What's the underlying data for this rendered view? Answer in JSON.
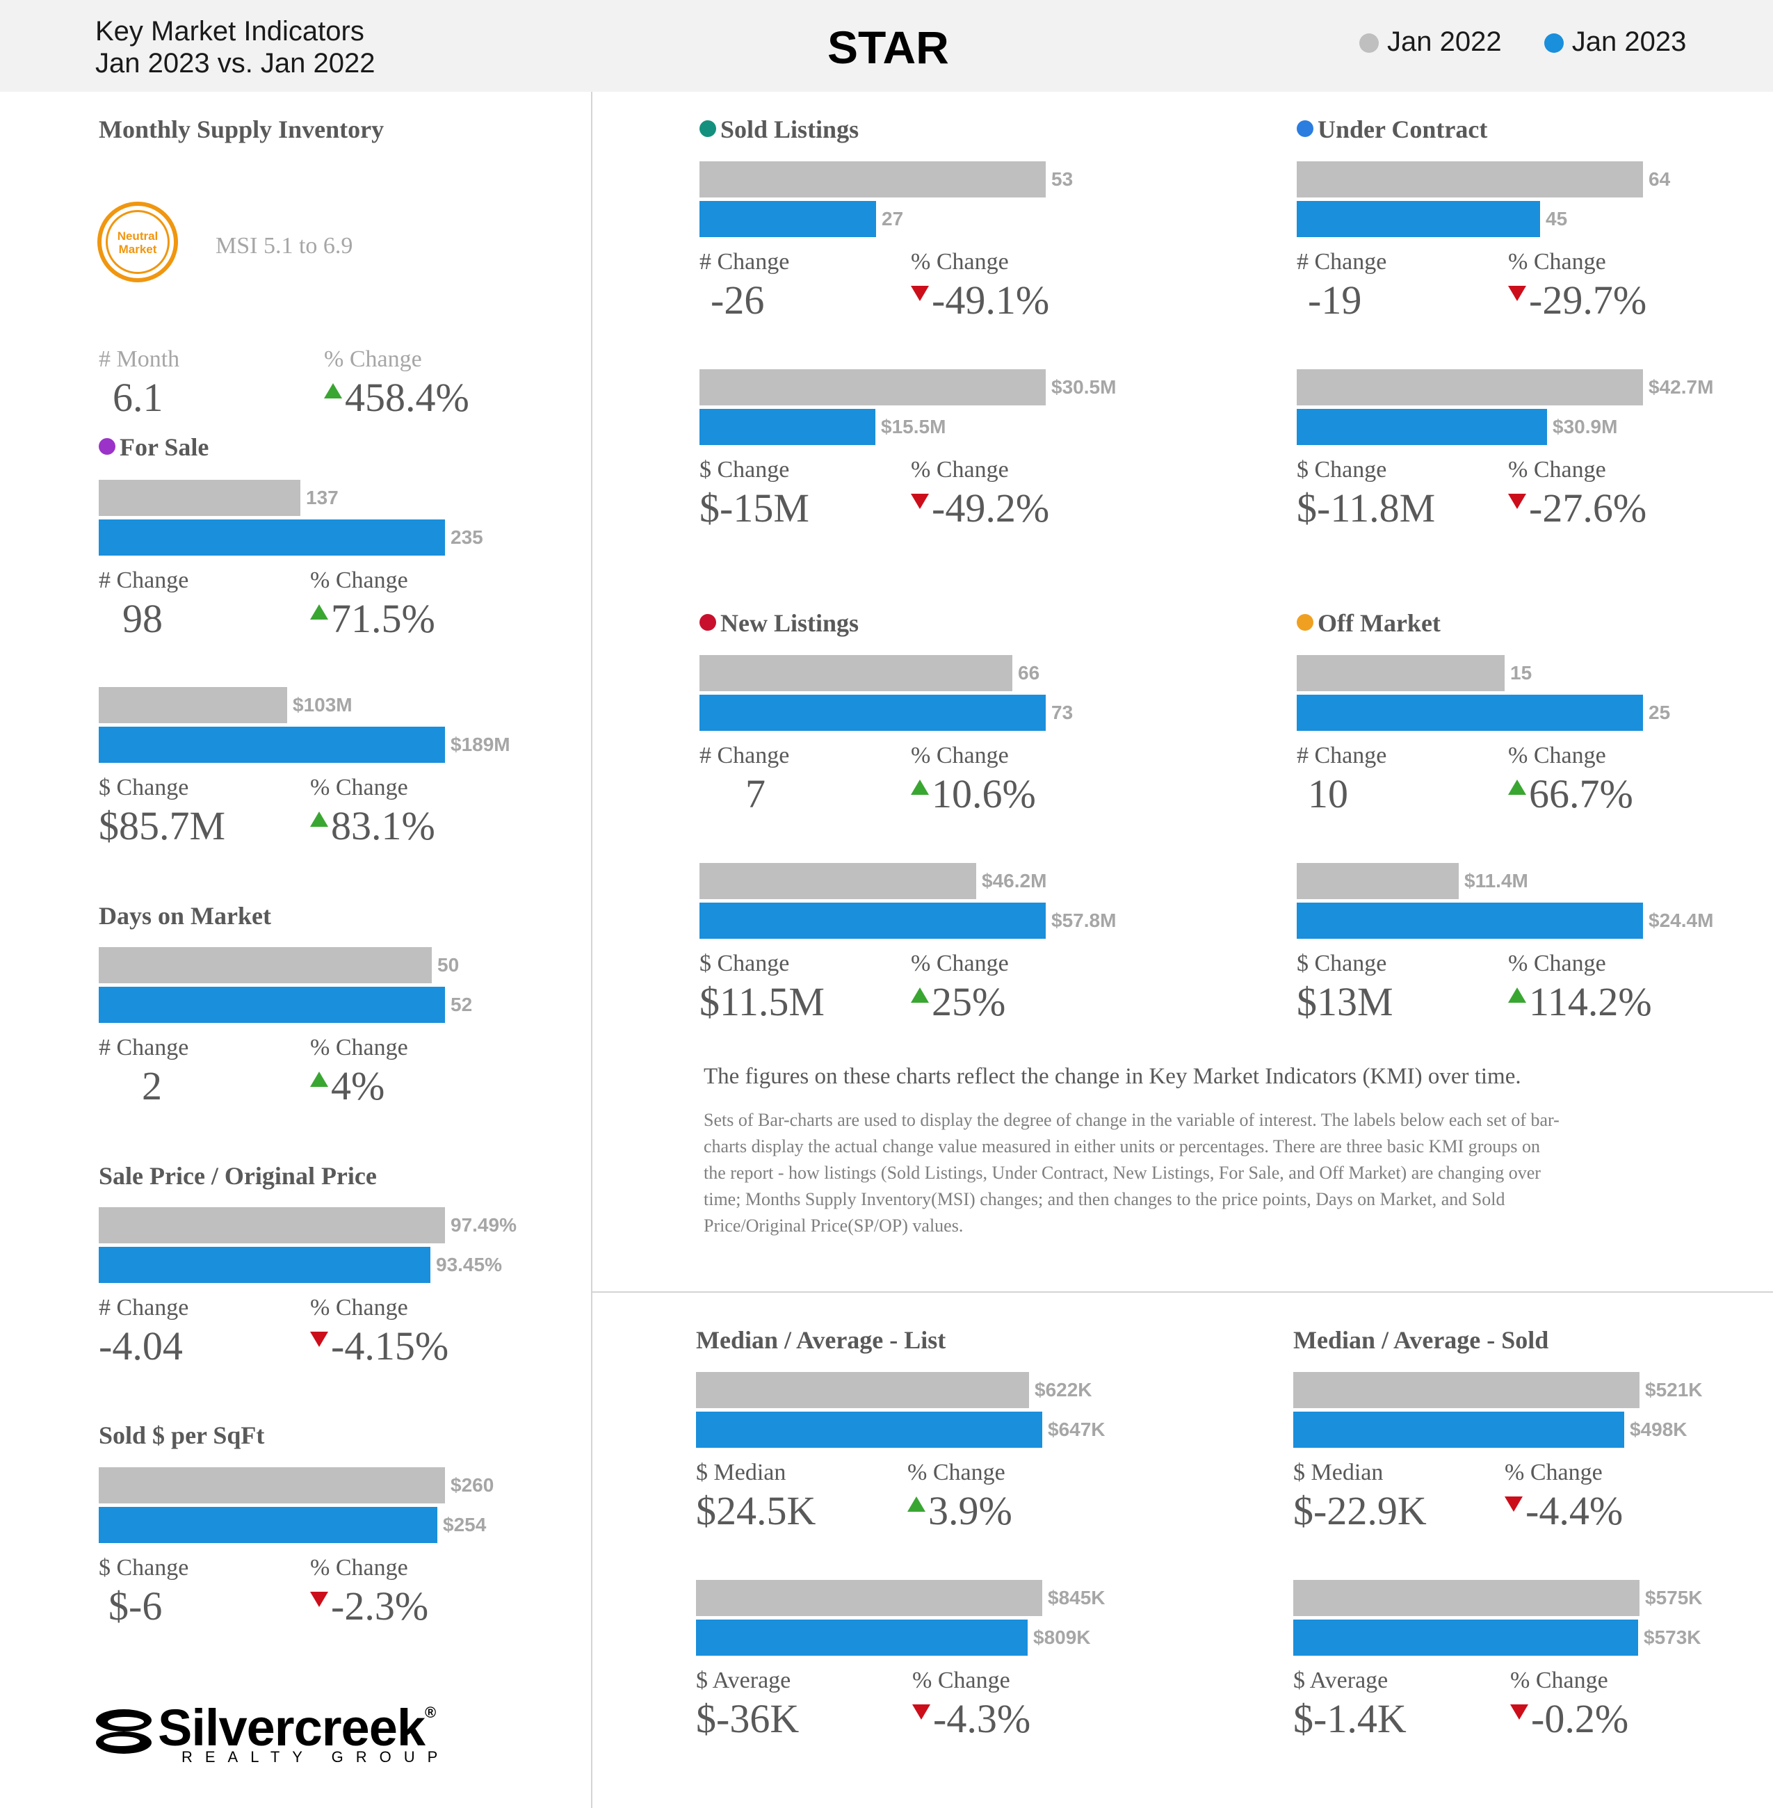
{
  "header": {
    "title_line1": "Key Market Indicators",
    "title_line2": "Jan 2023 vs. Jan 2022",
    "area": "STAR",
    "legend_old": "Jan 2022",
    "legend_new": "Jan 2023"
  },
  "colors": {
    "old_bar": "#bfbfbf",
    "new_bar": "#1a8fdc",
    "up": "#3aa632",
    "down": "#cc0e1b",
    "neutral_badge": "#f0960f"
  },
  "msi": {
    "title": "Monthly Supply Inventory",
    "badge_line1": "Neutral",
    "badge_line2": "Market",
    "range": "MSI 5.1 to 6.9",
    "month_caption": "# Month",
    "month_value": "6.1",
    "pct_caption": "% Change",
    "pct_value": "458.4%",
    "pct_direction": "up"
  },
  "blocks": {
    "for_sale_count": {
      "title": "For Sale",
      "dot_color": "#9b33c9",
      "old_label": "137",
      "new_label": "235",
      "cap1": "# Change",
      "val1": "98",
      "cap2": "% Change",
      "val2": "71.5%"
    },
    "for_sale_volume": {
      "old_label": "$103M",
      "new_label": "$189M",
      "cap1": "$ Change",
      "val1": "$85.7M",
      "cap2": "% Change",
      "val2": "83.1%"
    },
    "dom": {
      "title": "Days on Market",
      "old_label": "50",
      "new_label": "52",
      "cap1": "# Change",
      "val1": "2",
      "cap2": "% Change",
      "val2": "4%"
    },
    "spop": {
      "title": "Sale Price / Original Price",
      "old_label": "97.49%",
      "new_label": "93.45%",
      "cap1": "# Change",
      "val1": "-4.04",
      "cap2": "% Change",
      "val2": "-4.15%"
    },
    "sqft": {
      "title": "Sold $ per SqFt",
      "old_label": "$260",
      "new_label": "$254",
      "cap1": "$ Change",
      "val1": "$-6",
      "cap2": "% Change",
      "val2": "-2.3%"
    },
    "sold_count": {
      "title": "Sold Listings",
      "dot_color": "#14917e",
      "old_label": "53",
      "new_label": "27",
      "cap1": "# Change",
      "val1": "-26",
      "cap2": "% Change",
      "val2": "-49.1%"
    },
    "sold_volume": {
      "old_label": "$30.5M",
      "new_label": "$15.5M",
      "cap1": "$ Change",
      "val1": "$-15M",
      "cap2": "% Change",
      "val2": "-49.2%"
    },
    "uc_count": {
      "title": "Under Contract",
      "dot_color": "#2b7de0",
      "old_label": "64",
      "new_label": "45",
      "cap1": "# Change",
      "val1": "-19",
      "cap2": "% Change",
      "val2": "-29.7%"
    },
    "uc_volume": {
      "old_label": "$42.7M",
      "new_label": "$30.9M",
      "cap1": "$ Change",
      "val1": "$-11.8M",
      "cap2": "% Change",
      "val2": "-27.6%"
    },
    "new_count": {
      "title": "New Listings",
      "dot_color": "#c8102e",
      "old_label": "66",
      "new_label": "73",
      "cap1": "# Change",
      "val1": "7",
      "cap2": "% Change",
      "val2": "10.6%"
    },
    "new_volume": {
      "old_label": "$46.2M",
      "new_label": "$57.8M",
      "cap1": "$ Change",
      "val1": "$11.5M",
      "cap2": "% Change",
      "val2": "25%"
    },
    "off_count": {
      "title": "Off Market",
      "dot_color": "#f0a020",
      "old_label": "15",
      "new_label": "25",
      "cap1": "# Change",
      "val1": "10",
      "cap2": "% Change",
      "val2": "66.7%"
    },
    "off_volume": {
      "old_label": "$11.4M",
      "new_label": "$24.4M",
      "cap1": "$ Change",
      "val1": "$13M",
      "cap2": "% Change",
      "val2": "114.2%"
    },
    "list_median": {
      "title": "Median / Average - List",
      "old_label": "$622K",
      "new_label": "$647K",
      "cap1": "$ Median",
      "val1": "$24.5K",
      "cap2": "% Change",
      "val2": "3.9%"
    },
    "list_average": {
      "old_label": "$845K",
      "new_label": "$809K",
      "cap1": "$ Average",
      "val1": "$-36K",
      "cap2": "% Change",
      "val2": "-4.3%"
    },
    "sold_median": {
      "title": "Median / Average - Sold",
      "old_label": "$521K",
      "new_label": "$498K",
      "cap1": "$ Median",
      "val1": "$-22.9K",
      "cap2": "% Change",
      "val2": "-4.4%"
    },
    "sold_average": {
      "old_label": "$575K",
      "new_label": "$573K",
      "cap1": "$ Average",
      "val1": "$-1.4K",
      "cap2": "% Change",
      "val2": "-0.2%"
    }
  },
  "chart_data": [
    {
      "type": "bar",
      "title": "For Sale",
      "series": [
        {
          "name": "Jan 2022",
          "values": [
            137
          ]
        },
        {
          "name": "Jan 2023",
          "values": [
            235
          ]
        }
      ],
      "direction": "up"
    },
    {
      "type": "bar",
      "title": "For Sale",
      "series": [
        {
          "name": "Jan 2022",
          "values": [
            103
          ]
        },
        {
          "name": "Jan 2023",
          "values": [
            189
          ]
        }
      ],
      "direction": "up"
    },
    {
      "type": "bar",
      "title": "Days on Market",
      "series": [
        {
          "name": "Jan 2022",
          "values": [
            50
          ]
        },
        {
          "name": "Jan 2023",
          "values": [
            52
          ]
        }
      ],
      "direction": "up"
    },
    {
      "type": "bar",
      "title": "Sale Price / Original Price",
      "series": [
        {
          "name": "Jan 2022",
          "values": [
            97.49
          ]
        },
        {
          "name": "Jan 2023",
          "values": [
            93.45
          ]
        }
      ],
      "direction": "down"
    },
    {
      "type": "bar",
      "title": "Sold $ per SqFt",
      "series": [
        {
          "name": "Jan 2022",
          "values": [
            260
          ]
        },
        {
          "name": "Jan 2023",
          "values": [
            254
          ]
        }
      ],
      "direction": "down"
    },
    {
      "type": "bar",
      "title": "Sold Listings",
      "series": [
        {
          "name": "Jan 2022",
          "values": [
            53
          ]
        },
        {
          "name": "Jan 2023",
          "values": [
            27
          ]
        }
      ],
      "direction": "down"
    },
    {
      "type": "bar",
      "title": "Sold Listings",
      "series": [
        {
          "name": "Jan 2022",
          "values": [
            30.5
          ]
        },
        {
          "name": "Jan 2023",
          "values": [
            15.5
          ]
        }
      ],
      "direction": "down"
    },
    {
      "type": "bar",
      "title": "Under Contract",
      "series": [
        {
          "name": "Jan 2022",
          "values": [
            64
          ]
        },
        {
          "name": "Jan 2023",
          "values": [
            45
          ]
        }
      ],
      "direction": "down"
    },
    {
      "type": "bar",
      "title": "Under Contract",
      "series": [
        {
          "name": "Jan 2022",
          "values": [
            42.7
          ]
        },
        {
          "name": "Jan 2023",
          "values": [
            30.9
          ]
        }
      ],
      "direction": "down"
    },
    {
      "type": "bar",
      "title": "New Listings",
      "series": [
        {
          "name": "Jan 2022",
          "values": [
            66
          ]
        },
        {
          "name": "Jan 2023",
          "values": [
            73
          ]
        }
      ],
      "direction": "up"
    },
    {
      "type": "bar",
      "title": "New Listings",
      "series": [
        {
          "name": "Jan 2022",
          "values": [
            46.2
          ]
        },
        {
          "name": "Jan 2023",
          "values": [
            57.8
          ]
        }
      ],
      "direction": "up"
    },
    {
      "type": "bar",
      "title": "Off Market",
      "series": [
        {
          "name": "Jan 2022",
          "values": [
            15
          ]
        },
        {
          "name": "Jan 2023",
          "values": [
            25
          ]
        }
      ],
      "direction": "up"
    },
    {
      "type": "bar",
      "title": "Off Market",
      "series": [
        {
          "name": "Jan 2022",
          "values": [
            11.4
          ]
        },
        {
          "name": "Jan 2023",
          "values": [
            24.4
          ]
        }
      ],
      "direction": "up"
    },
    {
      "type": "bar",
      "title": "Median / Average - List",
      "series": [
        {
          "name": "Jan 2022",
          "values": [
            622
          ]
        },
        {
          "name": "Jan 2023",
          "values": [
            647
          ]
        }
      ],
      "direction": "up"
    },
    {
      "type": "bar",
      "title": "Median / Average - List",
      "series": [
        {
          "name": "Jan 2022",
          "values": [
            845
          ]
        },
        {
          "name": "Jan 2023",
          "values": [
            809
          ]
        }
      ],
      "direction": "down"
    },
    {
      "type": "bar",
      "title": "Median / Average - Sold",
      "series": [
        {
          "name": "Jan 2022",
          "values": [
            521
          ]
        },
        {
          "name": "Jan 2023",
          "values": [
            498
          ]
        }
      ],
      "direction": "down"
    },
    {
      "type": "bar",
      "title": "Median / Average - Sold",
      "series": [
        {
          "name": "Jan 2022",
          "values": [
            575
          ]
        },
        {
          "name": "Jan 2023",
          "values": [
            573
          ]
        }
      ],
      "direction": "down"
    }
  ],
  "footnote": {
    "lead": "The figures on these charts reflect the change in Key Market Indicators (KMI) over time.",
    "line1": "Sets of Bar-charts are used to display the degree of change in the variable of interest. The labels below each set of bar-",
    "line2": "charts display the actual change value measured in either units or percentages. There are three basic KMI groups on",
    "line3": "the report - how listings (Sold Listings, Under Contract, New Listings, For Sale, and Off Market) are changing over",
    "line4": "time; Months Supply Inventory(MSI) changes; and then changes to the price points, Days on Market, and Sold",
    "line5": "Price/Original Price(SP/OP) values."
  },
  "logo": {
    "name": "Silvercreek",
    "registered": "®",
    "tagline": "REALTY GROUP"
  }
}
